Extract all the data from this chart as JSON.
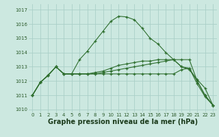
{
  "bg_color": "#cce8e0",
  "grid_color": "#aacfc8",
  "line_color": "#2d6e2d",
  "xlabel": "Graphe pression niveau de la mer (hPa)",
  "xlabel_fontsize": 7,
  "ylim": [
    1009.8,
    1017.4
  ],
  "xlim": [
    -0.5,
    23.5
  ],
  "yticks": [
    1010,
    1011,
    1012,
    1013,
    1014,
    1015,
    1016,
    1017
  ],
  "xticks": [
    0,
    1,
    2,
    3,
    4,
    5,
    6,
    7,
    8,
    9,
    10,
    11,
    12,
    13,
    14,
    15,
    16,
    17,
    18,
    19,
    20,
    21,
    22,
    23
  ],
  "series": [
    [
      1011.0,
      1011.9,
      1012.4,
      1013.0,
      1012.5,
      1012.5,
      1013.5,
      1014.1,
      1014.8,
      1015.5,
      1016.2,
      1016.55,
      1016.5,
      1016.3,
      1015.7,
      1015.0,
      1014.6,
      1014.0,
      1013.5,
      1013.0,
      1012.8,
      1012.1,
      1011.5,
      1010.3
    ],
    [
      1011.0,
      1011.9,
      1012.4,
      1013.0,
      1012.5,
      1012.5,
      1012.5,
      1012.5,
      1012.5,
      1012.5,
      1012.5,
      1012.5,
      1012.5,
      1012.5,
      1012.5,
      1012.5,
      1012.5,
      1012.5,
      1012.5,
      1012.8,
      1012.9,
      1011.8,
      1010.9,
      1010.3
    ],
    [
      1011.0,
      1011.9,
      1012.4,
      1013.0,
      1012.5,
      1012.5,
      1012.5,
      1012.5,
      1012.6,
      1012.7,
      1012.9,
      1013.1,
      1013.2,
      1013.3,
      1013.4,
      1013.4,
      1013.5,
      1013.5,
      1013.5,
      1013.5,
      1013.5,
      1012.0,
      1011.0,
      1010.3
    ],
    [
      1011.0,
      1011.9,
      1012.4,
      1013.0,
      1012.5,
      1012.5,
      1012.5,
      1012.5,
      1012.5,
      1012.6,
      1012.7,
      1012.8,
      1012.9,
      1013.0,
      1013.1,
      1013.2,
      1013.3,
      1013.4,
      1013.5,
      1013.0,
      1012.9,
      1012.0,
      1011.0,
      1010.3
    ]
  ]
}
